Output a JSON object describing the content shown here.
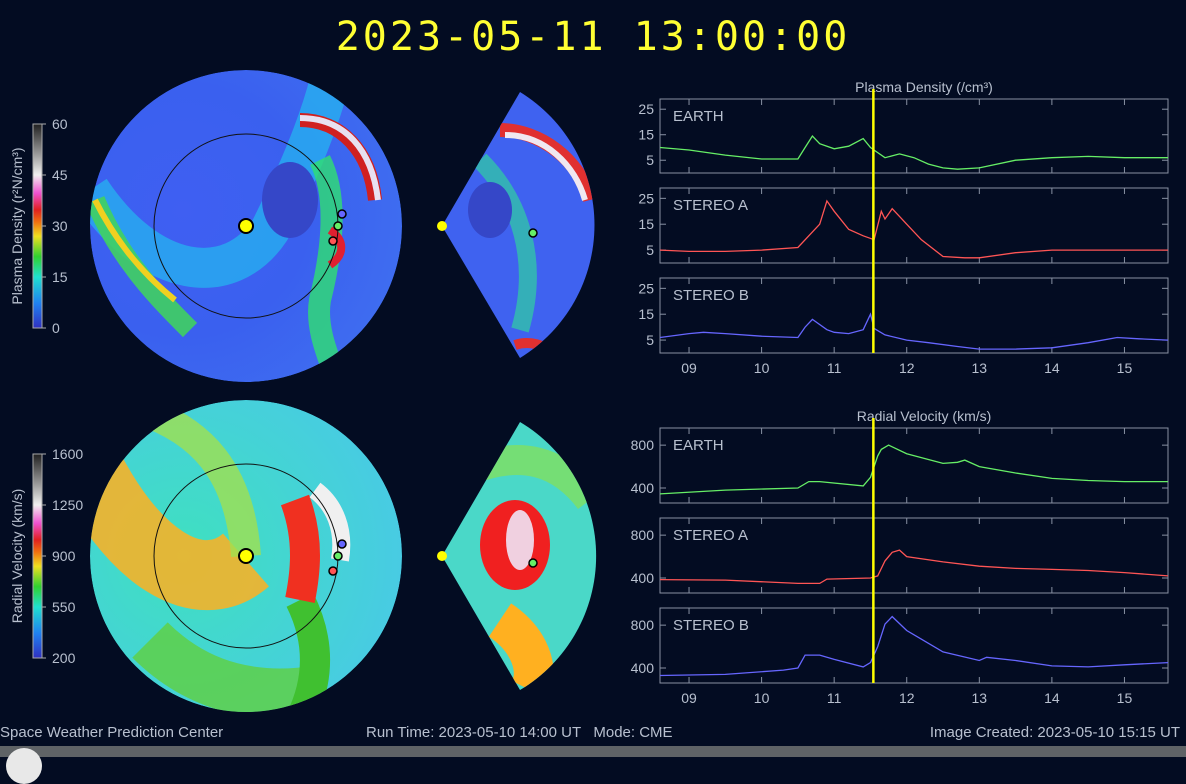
{
  "title": "2023-05-11 13:00:00",
  "colors": {
    "background": "#030c22",
    "title": "#ffff33",
    "earth": "#66ee66",
    "stereo_a": "#ff5555",
    "stereo_b": "#6666ff",
    "time_marker": "#ffff00"
  },
  "footer": {
    "left": "Space Weather Prediction Center",
    "center": "Run Time: 2023-05-10 14:00 UT   Mode: CME",
    "right": "Image Created: 2023-05-10 15:15 UT"
  },
  "colorbars": {
    "density": {
      "label": "Plasma Density (r²N/cm³)",
      "ticks": [
        "60",
        "45",
        "30",
        "15",
        "0"
      ]
    },
    "velocity": {
      "label": "Radial Velocity (km/s)",
      "ticks": [
        "1600",
        "1250",
        "900",
        "550",
        "200"
      ]
    }
  },
  "chart_data": [
    {
      "type": "line",
      "title": "Plasma Density (/cm³)",
      "xlim": [
        8.6,
        15.6
      ],
      "xticks": [
        9,
        10,
        11,
        12,
        13,
        14,
        15
      ],
      "xtick_labels": [
        "09",
        "10",
        "11",
        "12",
        "13",
        "14",
        "15"
      ],
      "ylim": [
        0,
        29
      ],
      "yticks": [
        5,
        15,
        25
      ],
      "ytick_labels": [
        "5",
        "15",
        "25"
      ],
      "current_time": 11.54,
      "panels": [
        {
          "name": "EARTH",
          "color": "#66ee66",
          "x": [
            8.6,
            9.0,
            9.5,
            10.0,
            10.5,
            10.6,
            10.7,
            10.8,
            11.0,
            11.2,
            11.4,
            11.5,
            11.6,
            11.7,
            11.9,
            12.1,
            12.3,
            12.5,
            12.7,
            13.0,
            13.5,
            14.0,
            14.5,
            15.0,
            15.6
          ],
          "y": [
            10,
            9,
            7,
            5.5,
            5.5,
            10,
            14.5,
            11.5,
            9.5,
            10.5,
            13.5,
            10,
            8,
            6,
            7.5,
            6,
            3.5,
            2,
            1.5,
            2,
            5,
            6,
            6.5,
            6,
            6
          ]
        },
        {
          "name": "STEREO A",
          "color": "#ff5555",
          "x": [
            8.6,
            9.0,
            9.5,
            10.0,
            10.5,
            10.8,
            10.9,
            11.0,
            11.2,
            11.4,
            11.55,
            11.65,
            11.7,
            11.8,
            11.9,
            12.0,
            12.2,
            12.5,
            12.8,
            13.0,
            13.5,
            14.0,
            14.5,
            15.0,
            15.6
          ],
          "y": [
            5,
            4.5,
            4.5,
            5,
            6,
            15,
            24,
            20,
            13,
            10.5,
            9,
            20,
            17,
            21,
            18,
            15,
            9,
            2.5,
            2,
            2,
            4,
            5,
            5,
            5,
            5
          ]
        },
        {
          "name": "STEREO B",
          "color": "#6666ff",
          "x": [
            8.6,
            9.0,
            9.2,
            9.5,
            10.0,
            10.5,
            10.6,
            10.7,
            10.9,
            11.0,
            11.2,
            11.4,
            11.5,
            11.55,
            11.7,
            12.0,
            12.3,
            12.7,
            13.0,
            13.5,
            14.0,
            14.5,
            14.9,
            15.2,
            15.6
          ],
          "y": [
            6,
            7.5,
            8,
            7.5,
            6.5,
            6,
            10,
            13,
            9,
            8,
            7.5,
            9,
            15,
            9.5,
            7,
            5,
            4,
            2.5,
            1.5,
            1.5,
            2,
            4,
            6,
            5.5,
            5
          ]
        }
      ]
    },
    {
      "type": "line",
      "title": "Radial Velocity (km/s)",
      "xlim": [
        8.6,
        15.6
      ],
      "xticks": [
        9,
        10,
        11,
        12,
        13,
        14,
        15
      ],
      "xtick_labels": [
        "09",
        "10",
        "11",
        "12",
        "13",
        "14",
        "15"
      ],
      "ylim": [
        260,
        960
      ],
      "yticks": [
        400,
        800
      ],
      "ytick_labels": [
        "400",
        "800"
      ],
      "current_time": 11.54,
      "panels": [
        {
          "name": "EARTH",
          "color": "#66ee66",
          "x": [
            8.6,
            9.5,
            10.5,
            10.65,
            10.8,
            11.4,
            11.5,
            11.6,
            11.65,
            11.75,
            12.0,
            12.5,
            12.7,
            12.8,
            13.0,
            13.5,
            14.0,
            14.5,
            15.0,
            15.6
          ],
          "y": [
            345,
            380,
            400,
            460,
            460,
            420,
            500,
            700,
            760,
            800,
            720,
            630,
            640,
            660,
            600,
            540,
            490,
            470,
            460,
            460
          ]
        },
        {
          "name": "STEREO A",
          "color": "#ff5555",
          "x": [
            8.6,
            9.5,
            10.5,
            10.8,
            10.9,
            11.5,
            11.6,
            11.7,
            11.8,
            11.9,
            12.0,
            12.5,
            13.0,
            13.5,
            14.0,
            14.5,
            15.0,
            15.6
          ],
          "y": [
            385,
            380,
            350,
            350,
            390,
            400,
            420,
            560,
            640,
            660,
            600,
            550,
            510,
            490,
            480,
            470,
            450,
            420
          ]
        },
        {
          "name": "STEREO B",
          "color": "#6666ff",
          "x": [
            8.6,
            9.5,
            10.3,
            10.5,
            10.6,
            10.8,
            11.0,
            11.4,
            11.5,
            11.6,
            11.7,
            11.8,
            12.0,
            12.5,
            13.0,
            13.1,
            13.5,
            14.0,
            14.5,
            15.0,
            15.6
          ],
          "y": [
            330,
            340,
            380,
            400,
            520,
            520,
            480,
            410,
            450,
            600,
            810,
            880,
            750,
            550,
            470,
            500,
            470,
            420,
            410,
            430,
            450
          ]
        }
      ]
    }
  ]
}
